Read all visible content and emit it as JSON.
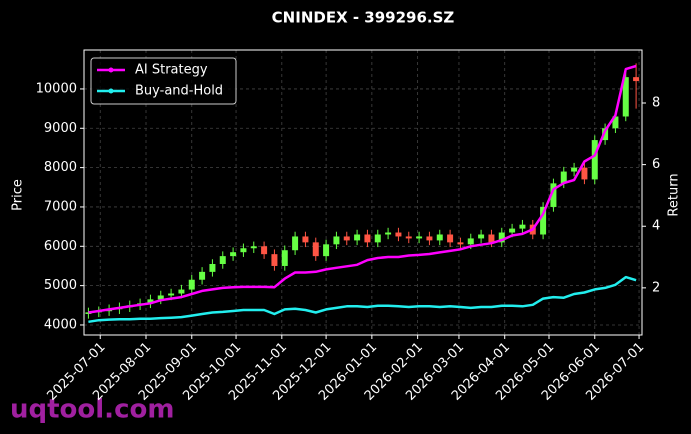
{
  "chart_data": {
    "type": "candlestick",
    "title": "CNINDEX - 399296.SZ",
    "ylabel": "Price",
    "y2label": "Return",
    "watermark": "uqtool.com",
    "x": [
      "2025-06-23",
      "2025-06-30",
      "2025-07-07",
      "2025-07-14",
      "2025-07-21",
      "2025-07-28",
      "2025-08-04",
      "2025-08-11",
      "2025-08-18",
      "2025-08-25",
      "2025-09-01",
      "2025-09-08",
      "2025-09-15",
      "2025-09-22",
      "2025-09-29",
      "2025-10-06",
      "2025-10-13",
      "2025-10-20",
      "2025-10-27",
      "2025-11-03",
      "2025-11-10",
      "2025-11-17",
      "2025-11-24",
      "2025-12-01",
      "2025-12-08",
      "2025-12-15",
      "2025-12-22",
      "2025-12-29",
      "2026-01-05",
      "2026-01-12",
      "2026-01-19",
      "2026-01-26",
      "2026-02-02",
      "2026-02-09",
      "2026-02-16",
      "2026-02-23",
      "2026-03-02",
      "2026-03-09",
      "2026-03-16",
      "2026-03-23",
      "2026-03-30",
      "2026-04-06",
      "2026-04-13",
      "2026-04-20",
      "2026-04-27",
      "2026-05-04",
      "2026-05-11",
      "2026-05-18",
      "2026-05-25",
      "2026-06-01",
      "2026-06-08",
      "2026-06-15",
      "2026-06-22",
      "2026-06-29"
    ],
    "open": [
      4280,
      4320,
      4350,
      4400,
      4450,
      4500,
      4550,
      4650,
      4750,
      4800,
      4900,
      5150,
      5350,
      5550,
      5750,
      5850,
      5950,
      6000,
      5800,
      5500,
      5900,
      6250,
      6100,
      5750,
      6050,
      6250,
      6150,
      6300,
      6100,
      6300,
      6350,
      6250,
      6200,
      6250,
      6150,
      6300,
      6100,
      6050,
      6200,
      6300,
      6100,
      6350,
      6450,
      6550,
      6300,
      7000,
      7600,
      7900,
      8000,
      7700,
      8700,
      9000,
      9300,
      10300
    ],
    "high": [
      4440,
      4470,
      4520,
      4570,
      4620,
      4670,
      4770,
      4870,
      4920,
      5020,
      5270,
      5470,
      5670,
      5870,
      5970,
      6070,
      6120,
      6120,
      5920,
      6020,
      6370,
      6370,
      6220,
      6170,
      6370,
      6370,
      6420,
      6420,
      6420,
      6470,
      6470,
      6370,
      6370,
      6370,
      6420,
      6420,
      6220,
      6320,
      6420,
      6420,
      6470,
      6570,
      6670,
      6670,
      7120,
      7720,
      8020,
      8120,
      8120,
      8820,
      9120,
      9420,
      10420,
      10650
    ],
    "low": [
      4160,
      4200,
      4230,
      4280,
      4330,
      4380,
      4430,
      4530,
      4630,
      4680,
      4780,
      5030,
      5230,
      5430,
      5630,
      5730,
      5830,
      5680,
      5380,
      5380,
      5780,
      5980,
      5630,
      5630,
      5930,
      6030,
      6030,
      5980,
      5980,
      6180,
      6130,
      6080,
      6080,
      6030,
      6030,
      5980,
      5930,
      5930,
      6080,
      5980,
      5980,
      6230,
      6330,
      6180,
      6180,
      6880,
      7480,
      7780,
      7580,
      7580,
      8580,
      8880,
      9180,
      9500
    ],
    "close": [
      4320,
      4350,
      4400,
      4450,
      4500,
      4550,
      4650,
      4750,
      4800,
      4900,
      5150,
      5350,
      5550,
      5750,
      5850,
      5950,
      6000,
      5800,
      5500,
      5900,
      6250,
      6100,
      5750,
      6050,
      6250,
      6150,
      6300,
      6100,
      6300,
      6350,
      6250,
      6200,
      6250,
      6150,
      6300,
      6100,
      6050,
      6200,
      6300,
      6100,
      6350,
      6450,
      6550,
      6300,
      7000,
      7600,
      7900,
      8000,
      7700,
      8700,
      9000,
      9300,
      10300,
      10200
    ],
    "up_color": "#66ff44",
    "down_color": "#ff5544",
    "series": [
      {
        "name": "AI Strategy",
        "color": "#ff00ff",
        "axis": "y2",
        "values": [
          1.2,
          1.25,
          1.3,
          1.35,
          1.4,
          1.45,
          1.5,
          1.6,
          1.65,
          1.7,
          1.8,
          1.9,
          1.95,
          2.0,
          2.02,
          2.03,
          2.03,
          2.03,
          2.02,
          2.3,
          2.5,
          2.5,
          2.52,
          2.6,
          2.65,
          2.7,
          2.75,
          2.9,
          2.97,
          3.0,
          3.0,
          3.05,
          3.07,
          3.1,
          3.15,
          3.2,
          3.25,
          3.35,
          3.4,
          3.45,
          3.55,
          3.7,
          3.75,
          3.9,
          4.4,
          5.2,
          5.4,
          5.5,
          6.1,
          6.3,
          7.1,
          7.6,
          9.1,
          9.2
        ]
      },
      {
        "name": "Buy-and-Hold",
        "color": "#22eeee",
        "axis": "y2",
        "values": [
          0.9,
          0.95,
          0.97,
          0.98,
          0.98,
          1.0,
          1.0,
          1.02,
          1.03,
          1.05,
          1.1,
          1.15,
          1.2,
          1.22,
          1.25,
          1.28,
          1.28,
          1.28,
          1.15,
          1.3,
          1.32,
          1.28,
          1.2,
          1.3,
          1.35,
          1.4,
          1.4,
          1.38,
          1.42,
          1.42,
          1.4,
          1.38,
          1.4,
          1.4,
          1.38,
          1.4,
          1.38,
          1.35,
          1.38,
          1.38,
          1.42,
          1.42,
          1.4,
          1.45,
          1.65,
          1.7,
          1.68,
          1.8,
          1.85,
          1.95,
          2.0,
          2.1,
          2.35,
          2.25
        ]
      }
    ],
    "xlim": [
      "2025-06-20",
      "2026-07-03"
    ],
    "xticks": [
      "2025-07-01",
      "2025-08-01",
      "2025-09-01",
      "2025-10-01",
      "2025-11-01",
      "2025-12-01",
      "2026-01-01",
      "2026-02-01",
      "2026-03-01",
      "2026-04-01",
      "2026-05-01",
      "2026-06-01",
      "2026-07-01"
    ],
    "ylim": [
      3745,
      10990
    ],
    "yticks": [
      4000,
      5000,
      6000,
      7000,
      8000,
      9000,
      10000
    ],
    "y2lim": [
      0.47,
      9.72
    ],
    "y2ticks": [
      2,
      4,
      6,
      8
    ],
    "grid": true,
    "legend": "upper left"
  }
}
